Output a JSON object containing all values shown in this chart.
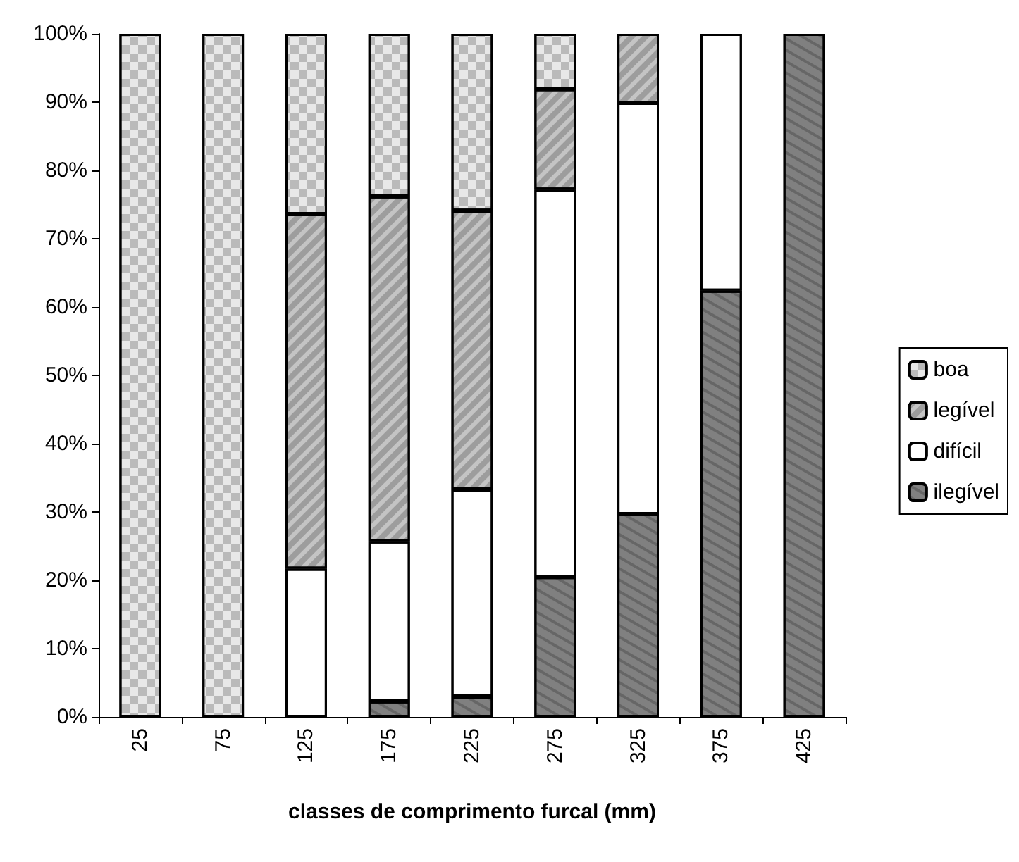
{
  "chart_data": {
    "type": "bar",
    "stacked": true,
    "xlabel": "classes de comprimento furcal (mm)",
    "categories": [
      "25",
      "75",
      "125",
      "175",
      "225",
      "275",
      "325",
      "375",
      "425"
    ],
    "series": [
      {
        "name": "ilegível",
        "color": "#808080",
        "values": [
          0,
          0,
          0,
          2.3,
          3.0,
          20.5,
          29.7,
          62.4,
          100
        ]
      },
      {
        "name": "difícil",
        "color": "#ffffff",
        "values": [
          0,
          0,
          21.7,
          23.4,
          30.3,
          56.7,
          60.2,
          37.6,
          0
        ]
      },
      {
        "name": "legível",
        "color": "#c4c4c4",
        "values": [
          0,
          0,
          51.9,
          50.5,
          40.8,
          14.7,
          10.1,
          0,
          0
        ]
      },
      {
        "name": "boa",
        "color": "#e8e8e8",
        "values": [
          100,
          100,
          26.4,
          23.8,
          25.9,
          8.1,
          0,
          0,
          0
        ]
      }
    ],
    "ylim": [
      0,
      100
    ],
    "yticks": [
      {
        "value": 0,
        "label": "0%"
      },
      {
        "value": 10,
        "label": "10%"
      },
      {
        "value": 20,
        "label": "20%"
      },
      {
        "value": 30,
        "label": "30%"
      },
      {
        "value": 40,
        "label": "40%"
      },
      {
        "value": 50,
        "label": "50%"
      },
      {
        "value": 60,
        "label": "60%"
      },
      {
        "value": 70,
        "label": "70%"
      },
      {
        "value": 80,
        "label": "80%"
      },
      {
        "value": 90,
        "label": "90%"
      },
      {
        "value": 100,
        "label": "100%"
      }
    ],
    "legend": "right",
    "grid": false
  }
}
